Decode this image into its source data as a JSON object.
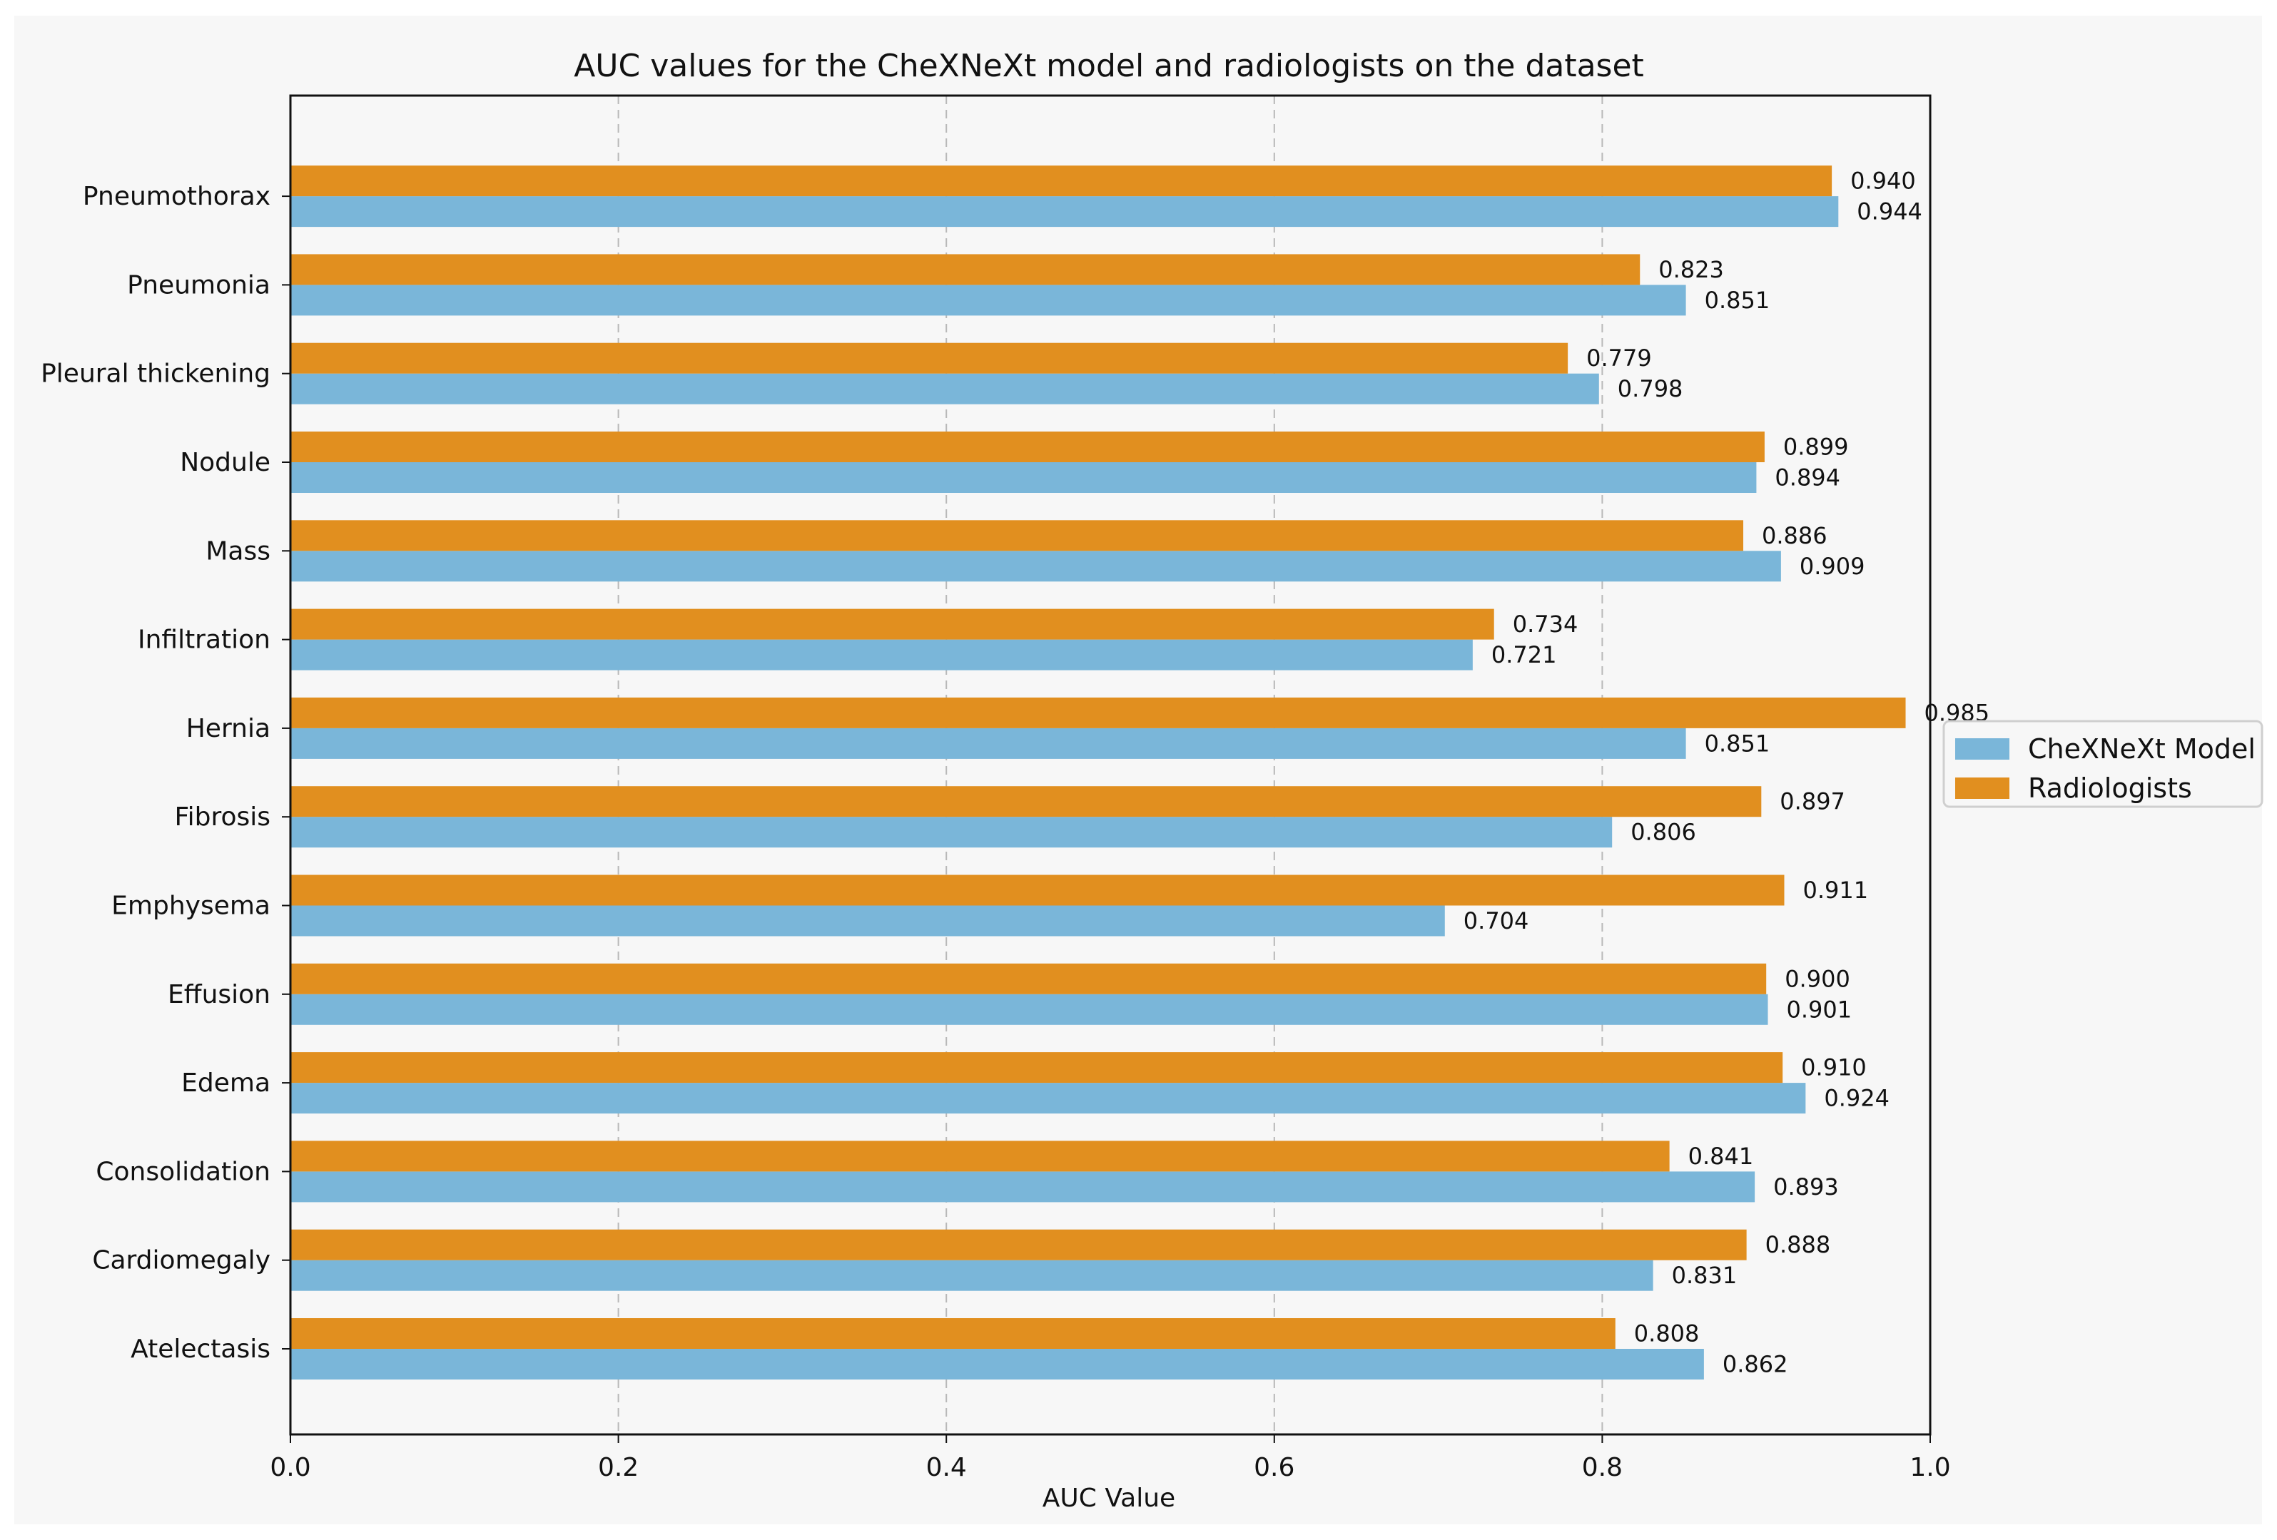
{
  "chart_data": {
    "type": "bar",
    "orientation": "horizontal",
    "title": "AUC values for the CheXNeXt model and radiologists on the dataset",
    "xlabel": "AUC Value",
    "ylabel": "",
    "xlim": [
      0.0,
      1.0
    ],
    "xticks": [
      0.0,
      0.2,
      0.4,
      0.6,
      0.8,
      1.0
    ],
    "xtick_labels": [
      "0.0",
      "0.2",
      "0.4",
      "0.6",
      "0.8",
      "1.0"
    ],
    "grid": "vertical dashed",
    "legend_position": "right",
    "categories": [
      "Atelectasis",
      "Cardiomegaly",
      "Consolidation",
      "Edema",
      "Effusion",
      "Emphysema",
      "Fibrosis",
      "Hernia",
      "Infiltration",
      "Mass",
      "Nodule",
      "Pleural thickening",
      "Pneumonia",
      "Pneumothorax"
    ],
    "series": [
      {
        "name": "CheXNeXt Model",
        "color": "#7ab6d9",
        "values": [
          0.862,
          0.831,
          0.893,
          0.924,
          0.901,
          0.704,
          0.806,
          0.851,
          0.721,
          0.909,
          0.894,
          0.798,
          0.851,
          0.944
        ],
        "labels": [
          "0.862",
          "0.831",
          "0.893",
          "0.924",
          "0.901",
          "0.704",
          "0.806",
          "0.851",
          "0.721",
          "0.909",
          "0.894",
          "0.798",
          "0.851",
          "0.944"
        ]
      },
      {
        "name": "Radiologists",
        "color": "#e18f1f",
        "values": [
          0.808,
          0.888,
          0.841,
          0.91,
          0.9,
          0.911,
          0.897,
          0.985,
          0.734,
          0.886,
          0.899,
          0.779,
          0.823,
          0.94
        ],
        "labels": [
          "0.808",
          "0.888",
          "0.841",
          "0.910",
          "0.900",
          "0.911",
          "0.897",
          "0.985",
          "0.734",
          "0.886",
          "0.899",
          "0.779",
          "0.823",
          "0.940"
        ]
      }
    ]
  }
}
